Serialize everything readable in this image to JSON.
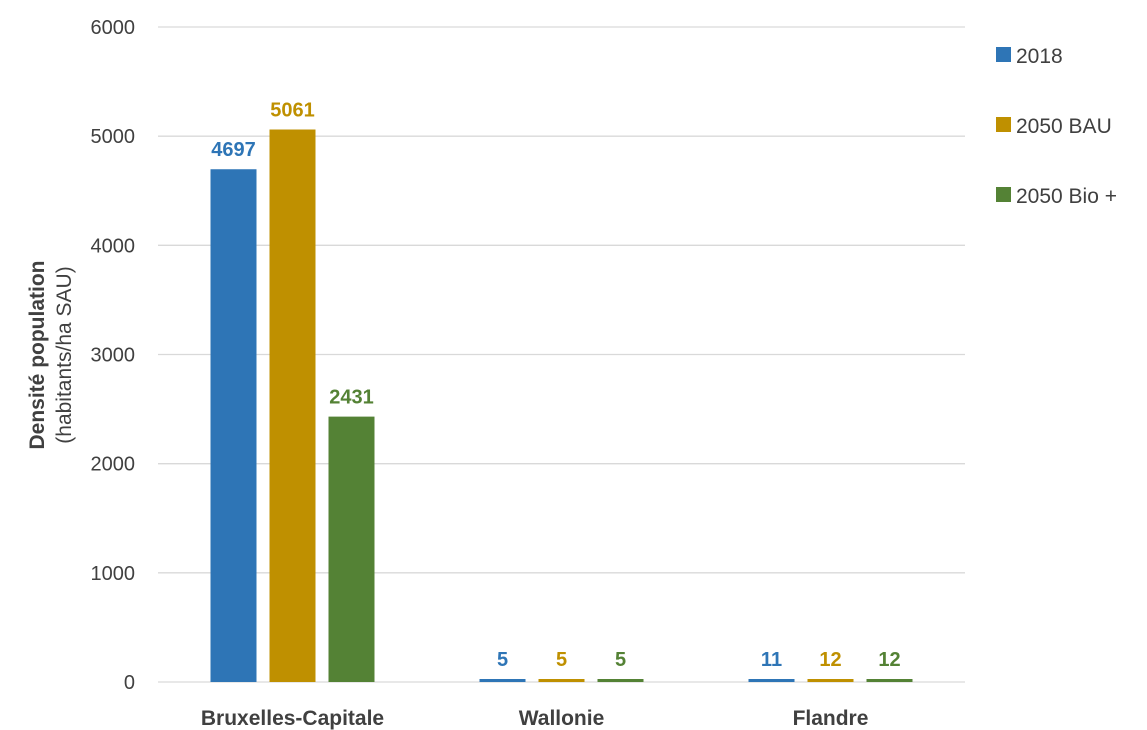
{
  "chart_data": {
    "type": "bar",
    "title": "",
    "xlabel": "",
    "ylabel_bold": "Densité population",
    "ylabel_unit": "(habitants/ha SAU)",
    "categories": [
      "Bruxelles-Capitale",
      "Wallonie",
      "Flandre"
    ],
    "series": [
      {
        "name": "2018",
        "color": "#2e75b6",
        "values": [
          4697,
          5,
          11
        ]
      },
      {
        "name": "2050 BAU",
        "color": "#bf9000",
        "values": [
          5061,
          5,
          12
        ]
      },
      {
        "name": "2050 Bio +",
        "color": "#548235",
        "values": [
          2431,
          5,
          12
        ]
      }
    ],
    "ylim": [
      0,
      6000
    ],
    "yticks": [
      0,
      1000,
      2000,
      3000,
      4000,
      5000,
      6000
    ],
    "grid": true,
    "legend_position": "right",
    "data_labels": true
  }
}
